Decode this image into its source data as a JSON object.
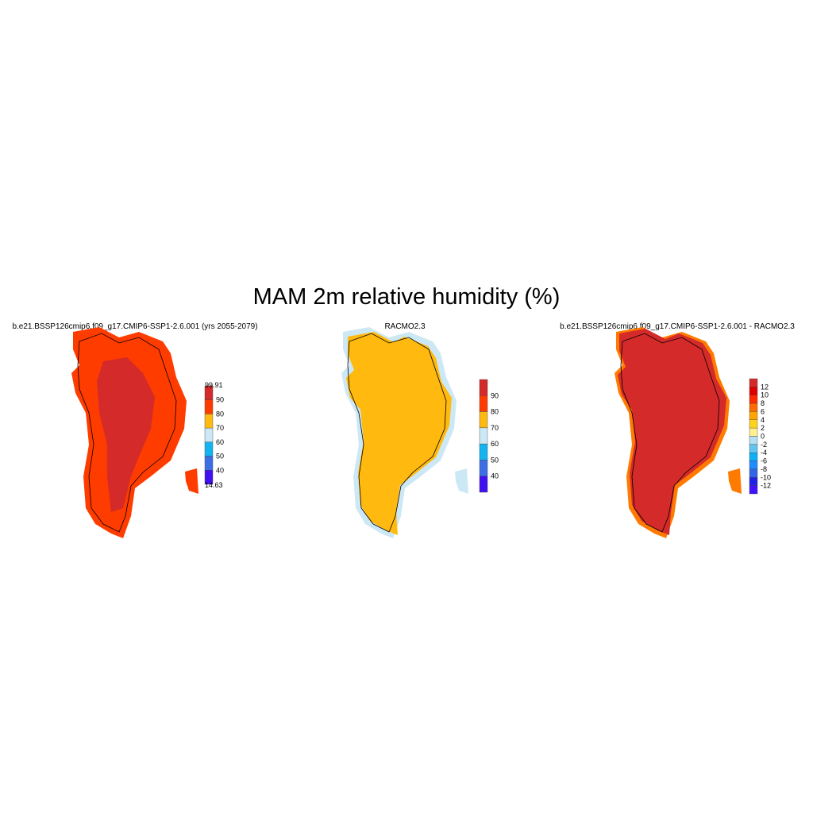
{
  "title": "MAM 2m relative humidity (%)",
  "panels": [
    {
      "title": "b.e21.BSSP126cmip6.f09_g17.CMIP6-SSP1-2.6.001 (yrs 2055-2079)",
      "base_color": "#ff3c00",
      "inner_color": "#d42a2a",
      "colorbar": {
        "labels": [
          "99.91",
          "90",
          "80",
          "70",
          "60",
          "50",
          "40",
          "14.63"
        ],
        "colors": [
          "#d42a2a",
          "#ff3c00",
          "#ffb90f",
          "#cde8f5",
          "#14b4f0",
          "#3c6ee6",
          "#4010f0"
        ]
      }
    },
    {
      "title": "RACMO2.3",
      "base_color": "#cde8f5",
      "inner_color": "#ffb90f",
      "colorbar": {
        "labels": [
          "90",
          "80",
          "70",
          "60",
          "50",
          "40"
        ],
        "colors": [
          "#d42a2a",
          "#ff3c00",
          "#ffb90f",
          "#cde8f5",
          "#14b4f0",
          "#3c6ee6",
          "#4010f0"
        ]
      }
    },
    {
      "title": "b.e21.BSSP126cmip6.f09_g17.CMIP6-SSP1-2.6.001 - RACMO2.3",
      "base_color": "#ff7a00",
      "inner_color": "#d42a2a",
      "colorbar": {
        "labels": [
          "12",
          "10",
          "8",
          "6",
          "4",
          "2",
          "0",
          "-2",
          "-4",
          "-6",
          "-8",
          "-10",
          "-12"
        ],
        "colors": [
          "#d42a2a",
          "#e00000",
          "#ff2a00",
          "#ff6a00",
          "#ffa500",
          "#ffd21e",
          "#fff08c",
          "#b4def2",
          "#64c4f0",
          "#10b0f8",
          "#1e8cff",
          "#3264e6",
          "#2020e6",
          "#4010ff"
        ]
      }
    }
  ]
}
